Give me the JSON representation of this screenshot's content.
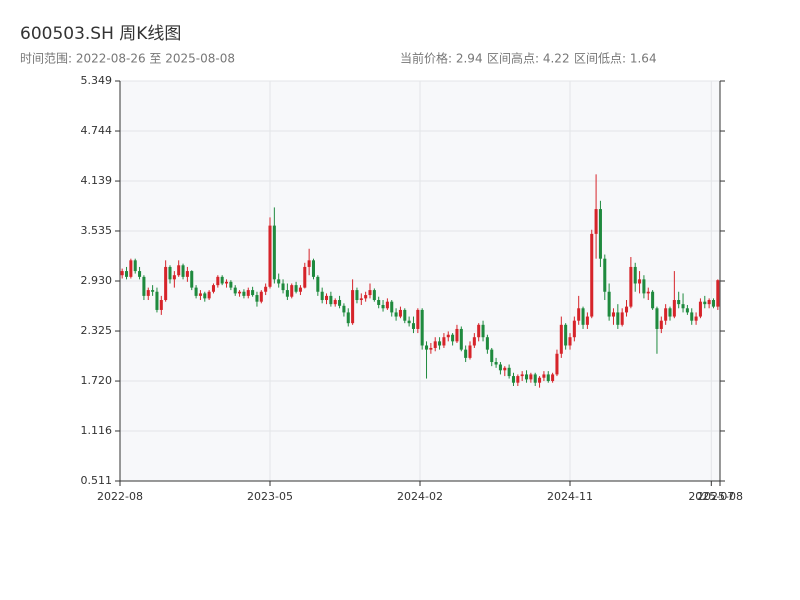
{
  "chart_data": {
    "type": "candlestick",
    "title": "600503.SH 周K线图",
    "subtitle": "时间范围: 2022-08-26 至 2025-08-08",
    "stats": [
      "当前价格: 2.94",
      "区间高点: 4.22",
      "区间低点: 1.64"
    ],
    "up_color": "#d6242a",
    "down_color": "#1f8a3e",
    "grid": true,
    "ylim": [
      0.511,
      5.349
    ],
    "yticks": [
      0.511,
      1.116,
      {
        "value": 1.72,
        "label": "1.720"
      },
      2.325,
      {
        "value": 2.93,
        "label": "2.930"
      },
      3.535,
      4.139,
      4.744,
      5.349
    ],
    "xlim": [
      0,
      138
    ],
    "xticks": [
      {
        "value": 0,
        "label": "2022-08"
      },
      {
        "value": 34.5,
        "label": "2023-05"
      },
      {
        "value": 69,
        "label": "2024-02"
      },
      {
        "value": 103.5,
        "label": "2024-11"
      },
      {
        "value": 136,
        "label": "2025-07"
      },
      {
        "value": 138,
        "label": "2025-08"
      }
    ],
    "ohlc": [
      [
        3.0,
        3.08,
        2.96,
        3.05
      ],
      [
        3.05,
        3.1,
        2.95,
        2.98
      ],
      [
        2.98,
        3.2,
        2.96,
        3.18
      ],
      [
        3.18,
        3.2,
        3.02,
        3.05
      ],
      [
        3.05,
        3.1,
        2.95,
        2.98
      ],
      [
        2.98,
        3.0,
        2.7,
        2.75
      ],
      [
        2.75,
        2.85,
        2.7,
        2.82
      ],
      [
        2.82,
        2.88,
        2.75,
        2.8
      ],
      [
        2.8,
        2.85,
        2.55,
        2.58
      ],
      [
        2.58,
        2.75,
        2.52,
        2.7
      ],
      [
        2.7,
        3.18,
        2.68,
        3.1
      ],
      [
        3.1,
        3.12,
        2.9,
        2.95
      ],
      [
        2.95,
        3.05,
        2.85,
        3.0
      ],
      [
        3.0,
        3.18,
        2.98,
        3.12
      ],
      [
        3.12,
        3.14,
        2.95,
        2.98
      ],
      [
        2.98,
        3.1,
        2.92,
        3.05
      ],
      [
        3.05,
        3.06,
        2.82,
        2.85
      ],
      [
        2.85,
        2.88,
        2.72,
        2.75
      ],
      [
        2.75,
        2.82,
        2.7,
        2.78
      ],
      [
        2.78,
        2.8,
        2.68,
        2.72
      ],
      [
        2.72,
        2.82,
        2.7,
        2.8
      ],
      [
        2.8,
        2.9,
        2.78,
        2.88
      ],
      [
        2.88,
        3.0,
        2.85,
        2.98
      ],
      [
        2.98,
        3.0,
        2.88,
        2.9
      ],
      [
        2.9,
        2.95,
        2.85,
        2.92
      ],
      [
        2.92,
        2.94,
        2.82,
        2.85
      ],
      [
        2.85,
        2.88,
        2.75,
        2.78
      ],
      [
        2.78,
        2.82,
        2.74,
        2.8
      ],
      [
        2.8,
        2.83,
        2.72,
        2.75
      ],
      [
        2.75,
        2.85,
        2.72,
        2.82
      ],
      [
        2.82,
        2.86,
        2.74,
        2.76
      ],
      [
        2.76,
        2.8,
        2.62,
        2.68
      ],
      [
        2.68,
        2.82,
        2.66,
        2.8
      ],
      [
        2.8,
        2.9,
        2.76,
        2.86
      ],
      [
        2.86,
        3.7,
        2.84,
        3.6
      ],
      [
        3.6,
        3.82,
        2.9,
        2.95
      ],
      [
        2.95,
        3.02,
        2.85,
        2.9
      ],
      [
        2.9,
        2.95,
        2.78,
        2.82
      ],
      [
        2.82,
        2.9,
        2.7,
        2.74
      ],
      [
        2.74,
        2.9,
        2.72,
        2.88
      ],
      [
        2.88,
        2.92,
        2.78,
        2.8
      ],
      [
        2.8,
        2.88,
        2.76,
        2.85
      ],
      [
        2.85,
        3.15,
        2.84,
        3.1
      ],
      [
        3.1,
        3.32,
        3.0,
        3.18
      ],
      [
        3.18,
        3.2,
        2.95,
        2.98
      ],
      [
        2.98,
        3.0,
        2.75,
        2.8
      ],
      [
        2.8,
        2.85,
        2.66,
        2.7
      ],
      [
        2.7,
        2.78,
        2.65,
        2.75
      ],
      [
        2.75,
        2.8,
        2.62,
        2.65
      ],
      [
        2.65,
        2.72,
        2.62,
        2.7
      ],
      [
        2.7,
        2.75,
        2.6,
        2.63
      ],
      [
        2.63,
        2.66,
        2.5,
        2.55
      ],
      [
        2.55,
        2.6,
        2.38,
        2.42
      ],
      [
        2.42,
        2.95,
        2.4,
        2.82
      ],
      [
        2.82,
        2.85,
        2.66,
        2.7
      ],
      [
        2.7,
        2.78,
        2.64,
        2.72
      ],
      [
        2.72,
        2.8,
        2.68,
        2.76
      ],
      [
        2.76,
        2.9,
        2.72,
        2.82
      ],
      [
        2.82,
        2.84,
        2.68,
        2.7
      ],
      [
        2.7,
        2.74,
        2.6,
        2.64
      ],
      [
        2.64,
        2.7,
        2.56,
        2.6
      ],
      [
        2.6,
        2.72,
        2.58,
        2.68
      ],
      [
        2.68,
        2.7,
        2.5,
        2.55
      ],
      [
        2.55,
        2.6,
        2.45,
        2.5
      ],
      [
        2.5,
        2.62,
        2.48,
        2.58
      ],
      [
        2.58,
        2.6,
        2.42,
        2.45
      ],
      [
        2.45,
        2.5,
        2.38,
        2.42
      ],
      [
        2.42,
        2.5,
        2.3,
        2.35
      ],
      [
        2.35,
        2.6,
        2.3,
        2.58
      ],
      [
        2.58,
        2.6,
        2.1,
        2.15
      ],
      [
        2.15,
        2.2,
        1.75,
        2.1
      ],
      [
        2.1,
        2.18,
        2.05,
        2.12
      ],
      [
        2.12,
        2.25,
        2.08,
        2.2
      ],
      [
        2.2,
        2.25,
        2.1,
        2.15
      ],
      [
        2.15,
        2.3,
        2.12,
        2.25
      ],
      [
        2.25,
        2.32,
        2.2,
        2.28
      ],
      [
        2.28,
        2.3,
        2.15,
        2.2
      ],
      [
        2.2,
        2.4,
        2.18,
        2.35
      ],
      [
        2.35,
        2.38,
        2.08,
        2.1
      ],
      [
        2.1,
        2.15,
        1.95,
        2.0
      ],
      [
        2.0,
        2.2,
        1.98,
        2.15
      ],
      [
        2.15,
        2.3,
        2.12,
        2.25
      ],
      [
        2.25,
        2.42,
        2.2,
        2.4
      ],
      [
        2.4,
        2.45,
        2.2,
        2.25
      ],
      [
        2.25,
        2.28,
        2.05,
        2.1
      ],
      [
        2.1,
        2.12,
        1.9,
        1.95
      ],
      [
        1.95,
        2.0,
        1.88,
        1.92
      ],
      [
        1.92,
        1.95,
        1.8,
        1.85
      ],
      [
        1.85,
        1.9,
        1.78,
        1.88
      ],
      [
        1.88,
        1.92,
        1.75,
        1.78
      ],
      [
        1.78,
        1.82,
        1.66,
        1.7
      ],
      [
        1.7,
        1.8,
        1.66,
        1.78
      ],
      [
        1.78,
        1.84,
        1.72,
        1.8
      ],
      [
        1.8,
        1.85,
        1.7,
        1.74
      ],
      [
        1.74,
        1.82,
        1.7,
        1.8
      ],
      [
        1.8,
        1.82,
        1.66,
        1.7
      ],
      [
        1.7,
        1.78,
        1.64,
        1.76
      ],
      [
        1.76,
        1.84,
        1.72,
        1.8
      ],
      [
        1.8,
        1.84,
        1.7,
        1.72
      ],
      [
        1.72,
        1.82,
        1.7,
        1.8
      ],
      [
        1.8,
        2.1,
        1.78,
        2.05
      ],
      [
        2.05,
        2.5,
        2.0,
        2.4
      ],
      [
        2.4,
        2.42,
        2.1,
        2.15
      ],
      [
        2.15,
        2.3,
        2.1,
        2.25
      ],
      [
        2.25,
        2.5,
        2.2,
        2.45
      ],
      [
        2.45,
        2.75,
        2.4,
        2.6
      ],
      [
        2.6,
        2.62,
        2.35,
        2.4
      ],
      [
        2.4,
        2.55,
        2.35,
        2.5
      ],
      [
        2.5,
        3.55,
        2.48,
        3.5
      ],
      [
        3.5,
        4.22,
        3.2,
        3.8
      ],
      [
        3.8,
        3.9,
        3.1,
        3.2
      ],
      [
        3.2,
        3.25,
        2.7,
        2.8
      ],
      [
        2.8,
        2.9,
        2.45,
        2.5
      ],
      [
        2.5,
        2.6,
        2.4,
        2.55
      ],
      [
        2.55,
        2.65,
        2.35,
        2.4
      ],
      [
        2.4,
        2.6,
        2.38,
        2.55
      ],
      [
        2.55,
        2.7,
        2.5,
        2.62
      ],
      [
        2.62,
        3.22,
        2.6,
        3.1
      ],
      [
        3.1,
        3.15,
        2.8,
        2.9
      ],
      [
        2.9,
        3.05,
        2.78,
        2.95
      ],
      [
        2.95,
        3.0,
        2.72,
        2.78
      ],
      [
        2.78,
        2.85,
        2.7,
        2.8
      ],
      [
        2.8,
        2.82,
        2.58,
        2.6
      ],
      [
        2.6,
        2.62,
        2.05,
        2.35
      ],
      [
        2.35,
        2.5,
        2.3,
        2.45
      ],
      [
        2.45,
        2.65,
        2.4,
        2.6
      ],
      [
        2.6,
        2.62,
        2.45,
        2.5
      ],
      [
        2.5,
        3.05,
        2.48,
        2.7
      ],
      [
        2.7,
        2.8,
        2.6,
        2.65
      ],
      [
        2.65,
        2.78,
        2.55,
        2.6
      ],
      [
        2.6,
        2.64,
        2.52,
        2.55
      ],
      [
        2.55,
        2.6,
        2.4,
        2.45
      ],
      [
        2.45,
        2.55,
        2.4,
        2.5
      ],
      [
        2.5,
        2.72,
        2.48,
        2.68
      ],
      [
        2.68,
        2.75,
        2.6,
        2.65
      ],
      [
        2.65,
        2.72,
        2.6,
        2.7
      ],
      [
        2.7,
        2.72,
        2.6,
        2.62
      ],
      [
        2.62,
        2.95,
        2.58,
        2.94
      ]
    ]
  }
}
